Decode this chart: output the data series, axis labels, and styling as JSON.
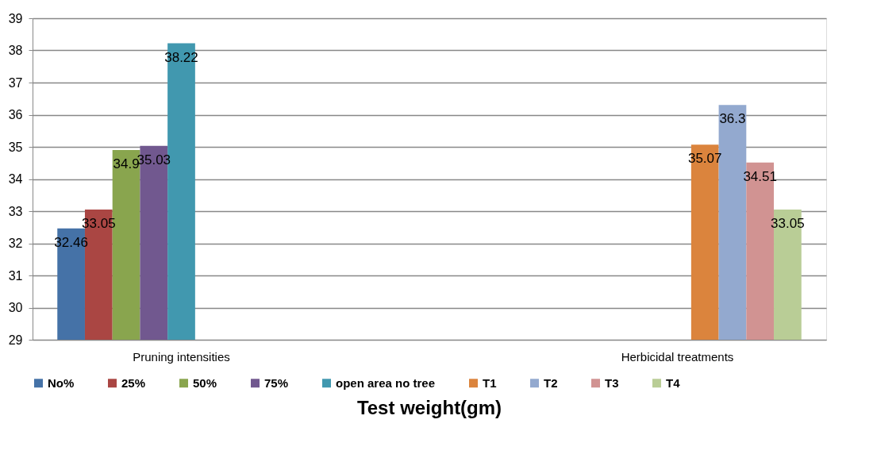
{
  "chart_data": {
    "type": "bar",
    "title": "Test weight(gm)",
    "categories": [
      "Pruning intensities",
      "Herbicidal treatments"
    ],
    "series": [
      {
        "name": "No%",
        "color": "#4572a7",
        "values": [
          32.46,
          null
        ]
      },
      {
        "name": "25%",
        "color": "#aa4643",
        "values": [
          33.05,
          null
        ]
      },
      {
        "name": "50%",
        "color": "#89a54e",
        "values": [
          34.9,
          null
        ]
      },
      {
        "name": "75%",
        "color": "#71588f",
        "values": [
          35.03,
          null
        ]
      },
      {
        "name": "open area no tree",
        "color": "#4198af",
        "values": [
          38.22,
          null
        ]
      },
      {
        "name": "T1",
        "color": "#db843d",
        "values": [
          null,
          35.07
        ]
      },
      {
        "name": "T2",
        "color": "#93a9cf",
        "values": [
          null,
          36.3
        ]
      },
      {
        "name": "T3",
        "color": "#d19392",
        "values": [
          null,
          34.51
        ]
      },
      {
        "name": "T4",
        "color": "#b9cd96",
        "values": [
          null,
          33.05
        ]
      }
    ],
    "ylim": [
      29,
      39
    ],
    "yticks": [
      29,
      30,
      31,
      32,
      33,
      34,
      35,
      36,
      37,
      38,
      39
    ],
    "grid": "y",
    "legend": "bottom",
    "data_labels": true
  }
}
